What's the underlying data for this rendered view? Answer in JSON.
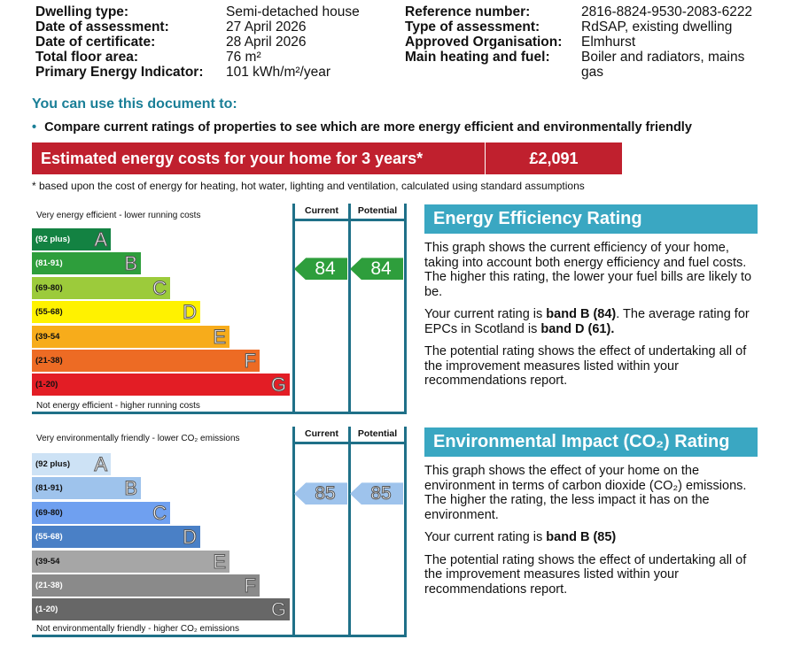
{
  "details_left": [
    {
      "label": "Dwelling type:",
      "value": "Semi-detached house"
    },
    {
      "label": "Date of assessment:",
      "value": "27 April 2026"
    },
    {
      "label": "Date of certificate:",
      "value": "28 April 2026"
    },
    {
      "label": "Total floor area:",
      "value": "76 m²"
    },
    {
      "label": "Primary Energy Indicator:",
      "value": "101 kWh/m²/year"
    }
  ],
  "details_right": [
    {
      "label": "Reference number:",
      "value": "2816-8824-9530-2083-6222"
    },
    {
      "label": "Type of assessment:",
      "value": "RdSAP, existing dwelling"
    },
    {
      "label": "Approved Organisation:",
      "value": "Elmhurst"
    },
    {
      "label": "Main heating and fuel:",
      "value": "Boiler and radiators, mains gas"
    }
  ],
  "use_heading": "You can use this document to:",
  "use_bullet": "Compare current ratings of properties to see which are more energy efficient and environmentally friendly",
  "cost": {
    "label": "Estimated energy costs for your home for 3 years*",
    "value": "£2,091",
    "note": "* based upon the cost of energy for heating, hot water, lighting and ventilation, calculated using standard assumptions"
  },
  "ee": {
    "top_caption": "Very energy efficient - lower running costs",
    "bottom_caption": "Not energy efficient - higher running costs",
    "col_current": "Current",
    "col_potential": "Potential",
    "current": "84",
    "potential": "84",
    "arrow_color": "#2e9e3c",
    "bands": [
      {
        "range": "(92 plus)",
        "letter": "A",
        "color": "#138242"
      },
      {
        "range": "(81-91)",
        "letter": "B",
        "color": "#2e9e3c"
      },
      {
        "range": "(69-80)",
        "letter": "C",
        "color": "#9ccb3b"
      },
      {
        "range": "(55-68)",
        "letter": "D",
        "color": "#fff200"
      },
      {
        "range": "(39-54",
        "letter": "E",
        "color": "#f7ac1b"
      },
      {
        "range": "(21-38)",
        "letter": "F",
        "color": "#ed6b24"
      },
      {
        "range": "(1-20)",
        "letter": "G",
        "color": "#e31d25"
      }
    ]
  },
  "ei": {
    "top_caption": "Very environmentally friendly - lower CO₂ emissions",
    "bottom_caption": "Not environmentally friendly - higher CO₂ emissions",
    "col_current": "Current",
    "col_potential": "Potential",
    "current": "85",
    "potential": "85",
    "arrow_color": "#9ec3ec",
    "bands": [
      {
        "range": "(92 plus)",
        "letter": "A",
        "color": "#cde2f5"
      },
      {
        "range": "(81-91)",
        "letter": "B",
        "color": "#9ec3ec"
      },
      {
        "range": "(69-80)",
        "letter": "C",
        "color": "#6fa0f0"
      },
      {
        "range": "(55-68)",
        "letter": "D",
        "color": "#4a80c6"
      },
      {
        "range": "(39-54",
        "letter": "E",
        "color": "#a6a6a6"
      },
      {
        "range": "(21-38)",
        "letter": "F",
        "color": "#8a8a8a"
      },
      {
        "range": "(1-20)",
        "letter": "G",
        "color": "#676767"
      }
    ]
  },
  "ee_panel": {
    "title": "Energy Efficiency Rating",
    "p1": "This graph shows the current efficiency of your home, taking into account both energy efficiency and fuel costs. The higher this rating, the lower your fuel bills are likely to be.",
    "p2a": "Your current rating is ",
    "p2b": "band B (84)",
    "p2c": ". The average rating for EPCs in Scotland is ",
    "p2d": "band D (61).",
    "p3": "The potential rating shows the effect of undertaking all of the improvement measures listed within your recommendations report."
  },
  "ei_panel": {
    "title": "Environmental Impact (CO₂) Rating",
    "p1": "This graph shows the effect of your home on the environment in terms of carbon dioxide (CO₂) emissions. The higher the rating, the less impact it has on the environment.",
    "p2a": "Your current rating is ",
    "p2b": "band B (85)",
    "p3": "The potential rating shows the effect of undertaking all of the improvement measures listed within your recommendations report."
  }
}
